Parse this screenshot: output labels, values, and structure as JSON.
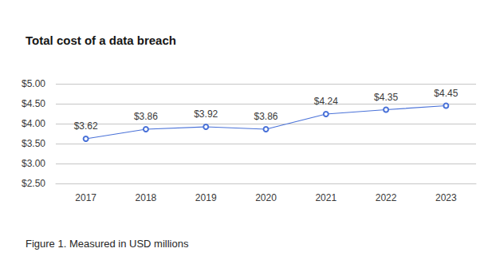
{
  "chart_data": {
    "type": "line",
    "title": "Total cost of a data breach",
    "caption": "Figure 1. Measured in USD millions",
    "categories": [
      "2017",
      "2018",
      "2019",
      "2020",
      "2021",
      "2022",
      "2023"
    ],
    "values": [
      3.62,
      3.86,
      3.92,
      3.86,
      4.24,
      4.35,
      4.45
    ],
    "value_labels": [
      "$3.62",
      "$3.86",
      "$3.92",
      "$3.86",
      "$4.24",
      "$4.35",
      "$4.45"
    ],
    "color": "#4a72d8",
    "marker": "circle",
    "ylim": [
      2.5,
      5.0
    ],
    "yticks": [
      {
        "value": 2.5,
        "label": "$2.50"
      },
      {
        "value": 3.0,
        "label": "$3.00"
      },
      {
        "value": 3.5,
        "label": "$3.50"
      },
      {
        "value": 4.0,
        "label": "$4.00"
      },
      {
        "value": 4.5,
        "label": "$4.50"
      },
      {
        "value": 5.0,
        "label": "$5.00"
      }
    ],
    "grid": true,
    "data_labels": true
  }
}
